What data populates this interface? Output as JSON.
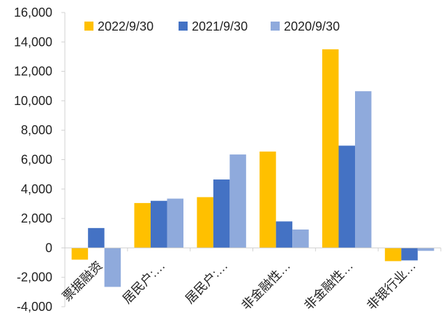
{
  "chart_data": {
    "type": "bar",
    "categories": [
      "票据融资",
      "居民户:…",
      "居民户:…",
      "非金融性…",
      "非金融性…",
      "非银行业…"
    ],
    "series": [
      {
        "name": "2022/9/30",
        "color": "#FFC000",
        "values": [
          -800,
          3050,
          3450,
          6550,
          13500,
          -900
        ]
      },
      {
        "name": "2021/9/30",
        "color": "#4472C4",
        "values": [
          1350,
          3200,
          4650,
          1800,
          6950,
          -850
        ]
      },
      {
        "name": "2020/9/30",
        "color": "#8FAADC",
        "values": [
          -2650,
          3350,
          6350,
          1250,
          10650,
          -200
        ]
      }
    ],
    "ylim": [
      -4000,
      16000
    ],
    "yticks": [
      -4000,
      -2000,
      0,
      2000,
      4000,
      6000,
      8000,
      10000,
      12000,
      14000,
      16000
    ],
    "ytick_labels": [
      "-4,000",
      "-2,000",
      "0",
      "2,000",
      "4,000",
      "6,000",
      "8,000",
      "10,000",
      "12,000",
      "14,000",
      "16,000"
    ],
    "legend_position": "top",
    "grid": false
  }
}
